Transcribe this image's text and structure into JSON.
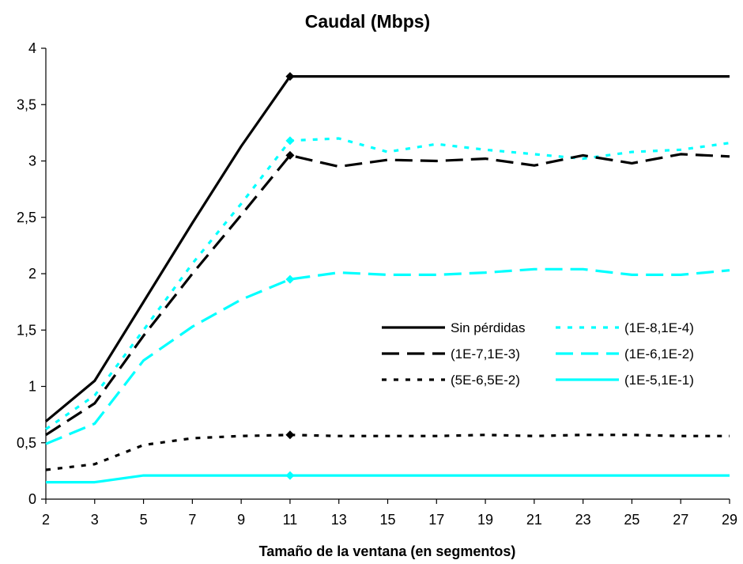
{
  "chart_data": {
    "type": "line",
    "title": "Caudal (Mbps)",
    "xlabel": "Tamaño de la ventana (en segmentos)",
    "ylabel": "",
    "categories": [
      "2",
      "3",
      "5",
      "7",
      "9",
      "11",
      "13",
      "15",
      "17",
      "19",
      "21",
      "23",
      "25",
      "27",
      "29"
    ],
    "y_ticks": [
      "0",
      "0,5",
      "1",
      "1,5",
      "2",
      "2,5",
      "3",
      "3,5",
      "4"
    ],
    "ylim": [
      0,
      4
    ],
    "grid": false,
    "legend_position": "right-middle",
    "series": [
      {
        "name": "Sin pérdidas",
        "color": "#000000",
        "style": "solid",
        "values": [
          0.69,
          1.05,
          1.75,
          2.45,
          3.13,
          3.75,
          3.75,
          3.75,
          3.75,
          3.75,
          3.75,
          3.75,
          3.75,
          3.75,
          3.75
        ]
      },
      {
        "name": "(1E-8,1E-4)",
        "color": "#00ffff",
        "style": "dotted",
        "values": [
          0.62,
          0.92,
          1.5,
          2.09,
          2.62,
          3.18,
          3.2,
          3.08,
          3.15,
          3.1,
          3.06,
          3.02,
          3.08,
          3.1,
          3.16
        ]
      },
      {
        "name": "(1E-7,1E-3)",
        "color": "#000000",
        "style": "longdash",
        "values": [
          0.57,
          0.85,
          1.45,
          2.0,
          2.52,
          3.05,
          2.95,
          3.01,
          3.0,
          3.02,
          2.96,
          3.05,
          2.98,
          3.06,
          3.04
        ]
      },
      {
        "name": "(1E-6,1E-2)",
        "color": "#00ffff",
        "style": "longdash",
        "values": [
          0.49,
          0.67,
          1.23,
          1.53,
          1.77,
          1.95,
          2.01,
          1.99,
          1.99,
          2.01,
          2.04,
          2.04,
          1.99,
          1.99,
          2.03
        ]
      },
      {
        "name": "(5E-6,5E-2)",
        "color": "#000000",
        "style": "dotted",
        "values": [
          0.26,
          0.31,
          0.48,
          0.54,
          0.56,
          0.57,
          0.56,
          0.56,
          0.56,
          0.57,
          0.56,
          0.57,
          0.57,
          0.56,
          0.56
        ]
      },
      {
        "name": "(1E-5,1E-1)",
        "color": "#00ffff",
        "style": "solid",
        "values": [
          0.15,
          0.15,
          0.21,
          0.21,
          0.21,
          0.21,
          0.21,
          0.21,
          0.21,
          0.21,
          0.21,
          0.21,
          0.21,
          0.21,
          0.21
        ]
      }
    ],
    "markers": [
      {
        "series": "Sin pérdidas",
        "category": "11",
        "value": 3.75,
        "color": "#000000"
      },
      {
        "series": "(1E-8,1E-4)",
        "category": "11",
        "value": 3.18,
        "color": "#00ffff"
      },
      {
        "series": "(1E-7,1E-3)",
        "category": "11",
        "value": 3.05,
        "color": "#000000"
      },
      {
        "series": "(1E-6,1E-2)",
        "category": "11",
        "value": 1.95,
        "color": "#00ffff"
      },
      {
        "series": "(5E-6,5E-2)",
        "category": "11",
        "value": 0.57,
        "color": "#000000"
      },
      {
        "series": "(1E-5,1E-1)",
        "category": "11",
        "value": 0.21,
        "color": "#00ffff"
      }
    ]
  }
}
